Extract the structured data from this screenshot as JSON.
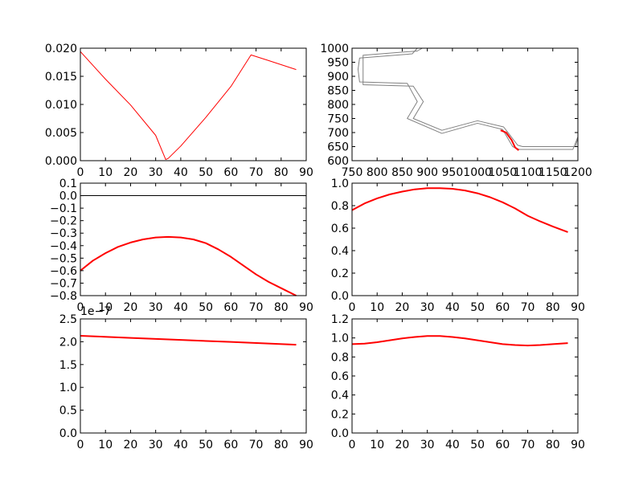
{
  "colors": {
    "highlight": "#ff0000",
    "track": "#808080",
    "reference": "#000000"
  },
  "chart_data": [
    {
      "type": "line",
      "grid": false,
      "xlim": [
        0,
        90
      ],
      "ylim": [
        0,
        0.02
      ],
      "xticks": [
        "0",
        "10",
        "20",
        "30",
        "40",
        "50",
        "60",
        "70",
        "80",
        "90"
      ],
      "yticks": [
        "0.000",
        "0.005",
        "0.010",
        "0.015",
        "0.020"
      ],
      "series": [
        {
          "color": "#ff0000",
          "width": 1,
          "x": [
            0,
            10,
            20,
            30,
            34,
            35,
            40,
            50,
            60,
            68,
            75,
            86
          ],
          "y": [
            0.0194,
            0.0145,
            0.0099,
            0.0045,
            0.0002,
            0.0004,
            0.0026,
            0.0077,
            0.0132,
            0.0188,
            0.0178,
            0.0162
          ]
        }
      ]
    },
    {
      "type": "line",
      "grid": false,
      "xlim": [
        750,
        1200
      ],
      "ylim": [
        600,
        1000
      ],
      "xticks": [
        "750",
        "800",
        "850",
        "900",
        "950",
        "1000",
        "1050",
        "1100",
        "1150",
        "1200"
      ],
      "yticks": [
        "600",
        "650",
        "700",
        "750",
        "800",
        "850",
        "900",
        "950",
        "1000"
      ],
      "series": [
        {
          "color": "#808080",
          "width": 1,
          "x": [
            880,
            870,
            765,
            762,
            765,
            860,
            880,
            860,
            929,
            1000,
            1050,
            1070,
            1083,
            1190,
            1200
          ],
          "y": [
            1000,
            980,
            965,
            925,
            880,
            875,
            810,
            750,
            697,
            733,
            711,
            650,
            640,
            640,
            685
          ]
        },
        {
          "color": "#808080",
          "width": 1,
          "x": [
            890,
            880,
            772,
            772,
            772,
            872,
            892,
            872,
            929,
            1000,
            1052,
            1080,
            1090,
            1195,
            1200
          ],
          "y": [
            1000,
            990,
            975,
            925,
            870,
            865,
            810,
            750,
            708,
            742,
            720,
            655,
            650,
            650,
            680
          ]
        },
        {
          "color": "#ff0000",
          "width": 2,
          "x": [
            1046,
            1057,
            1068,
            1075,
            1082
          ],
          "y": [
            708,
            700,
            673,
            647,
            637
          ]
        }
      ]
    },
    {
      "type": "line",
      "grid": false,
      "xlim": [
        0,
        90
      ],
      "ylim": [
        -0.8,
        0.1
      ],
      "xticks": [
        "0",
        "10",
        "20",
        "30",
        "40",
        "50",
        "60",
        "70",
        "80",
        "90"
      ],
      "yticks": [
        "−0.8",
        "−0.7",
        "−0.6",
        "−0.5",
        "−0.4",
        "−0.3",
        "−0.2",
        "−0.1",
        "0.0",
        "0.1"
      ],
      "series": [
        {
          "color": "#000000",
          "width": 1,
          "x": [
            0,
            90
          ],
          "y": [
            0,
            0
          ]
        },
        {
          "color": "#ff0000",
          "width": 2,
          "x": [
            0,
            5,
            10,
            15,
            20,
            25,
            30,
            35,
            40,
            45,
            50,
            55,
            60,
            65,
            70,
            75,
            80,
            86
          ],
          "y": [
            -0.6,
            -0.52,
            -0.46,
            -0.41,
            -0.375,
            -0.35,
            -0.335,
            -0.33,
            -0.335,
            -0.35,
            -0.38,
            -0.43,
            -0.49,
            -0.56,
            -0.63,
            -0.69,
            -0.74,
            -0.8
          ]
        }
      ]
    },
    {
      "type": "line",
      "grid": false,
      "xlim": [
        0,
        90
      ],
      "ylim": [
        0,
        1.0
      ],
      "xticks": [
        "0",
        "10",
        "20",
        "30",
        "40",
        "50",
        "60",
        "70",
        "80",
        "90"
      ],
      "yticks": [
        "0.0",
        "0.2",
        "0.4",
        "0.6",
        "0.8",
        "1.0"
      ],
      "series": [
        {
          "color": "#ff0000",
          "width": 2,
          "x": [
            0,
            5,
            10,
            15,
            20,
            25,
            30,
            35,
            40,
            45,
            50,
            55,
            60,
            65,
            70,
            75,
            80,
            86
          ],
          "y": [
            0.76,
            0.82,
            0.865,
            0.9,
            0.925,
            0.945,
            0.955,
            0.955,
            0.95,
            0.935,
            0.91,
            0.875,
            0.83,
            0.775,
            0.71,
            0.66,
            0.615,
            0.565
          ]
        }
      ]
    },
    {
      "type": "line",
      "grid": false,
      "xlim": [
        0,
        90
      ],
      "ylim": [
        0,
        2.5
      ],
      "offset_label": "1e−7",
      "xticks": [
        "0",
        "10",
        "20",
        "30",
        "40",
        "50",
        "60",
        "70",
        "80",
        "90"
      ],
      "yticks": [
        "0.0",
        "0.5",
        "1.0",
        "1.5",
        "2.0",
        "2.5"
      ],
      "series": [
        {
          "color": "#ff0000",
          "width": 2,
          "x": [
            0,
            20,
            40,
            60,
            86
          ],
          "y": [
            2.13,
            2.085,
            2.04,
            1.995,
            1.935
          ]
        }
      ]
    },
    {
      "type": "line",
      "grid": false,
      "xlim": [
        0,
        90
      ],
      "ylim": [
        0,
        1.2
      ],
      "xticks": [
        "0",
        "10",
        "20",
        "30",
        "40",
        "50",
        "60",
        "70",
        "80",
        "90"
      ],
      "yticks": [
        "0.0",
        "0.2",
        "0.4",
        "0.6",
        "0.8",
        "1.0",
        "1.2"
      ],
      "series": [
        {
          "color": "#ff0000",
          "width": 2,
          "x": [
            0,
            5,
            10,
            15,
            20,
            25,
            30,
            35,
            40,
            45,
            50,
            55,
            60,
            65,
            70,
            75,
            80,
            86
          ],
          "y": [
            0.935,
            0.94,
            0.955,
            0.975,
            0.995,
            1.01,
            1.02,
            1.02,
            1.01,
            0.995,
            0.975,
            0.955,
            0.935,
            0.925,
            0.92,
            0.925,
            0.935,
            0.945
          ]
        }
      ]
    }
  ]
}
